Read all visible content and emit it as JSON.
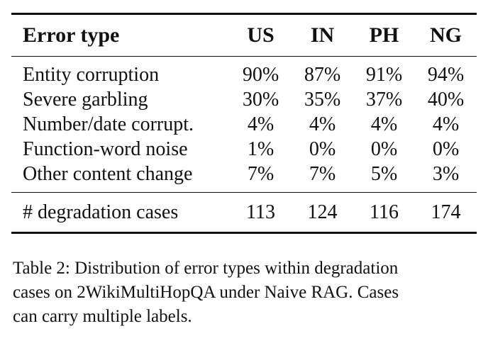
{
  "table": {
    "columns": [
      "Error type",
      "US",
      "IN",
      "PH",
      "NG"
    ],
    "rows": [
      {
        "label": "Entity corruption",
        "values": [
          "90%",
          "87%",
          "91%",
          "94%"
        ]
      },
      {
        "label": "Severe garbling",
        "values": [
          "30%",
          "35%",
          "37%",
          "40%"
        ]
      },
      {
        "label": "Number/date corrupt.",
        "values": [
          "4%",
          "4%",
          "4%",
          "4%"
        ]
      },
      {
        "label": "Function-word noise",
        "values": [
          "1%",
          "0%",
          "0%",
          "0%"
        ]
      },
      {
        "label": "Other content change",
        "values": [
          "7%",
          "7%",
          "5%",
          "3%"
        ]
      }
    ],
    "total": {
      "label": "# degradation cases",
      "values": [
        "113",
        "124",
        "116",
        "174"
      ]
    }
  },
  "caption": {
    "line1": "Table 2: Distribution of error types within degradation",
    "line2": "cases on 2WikiMultiHopQA under Naive RAG. Cases",
    "line3": "can carry multiple labels."
  }
}
